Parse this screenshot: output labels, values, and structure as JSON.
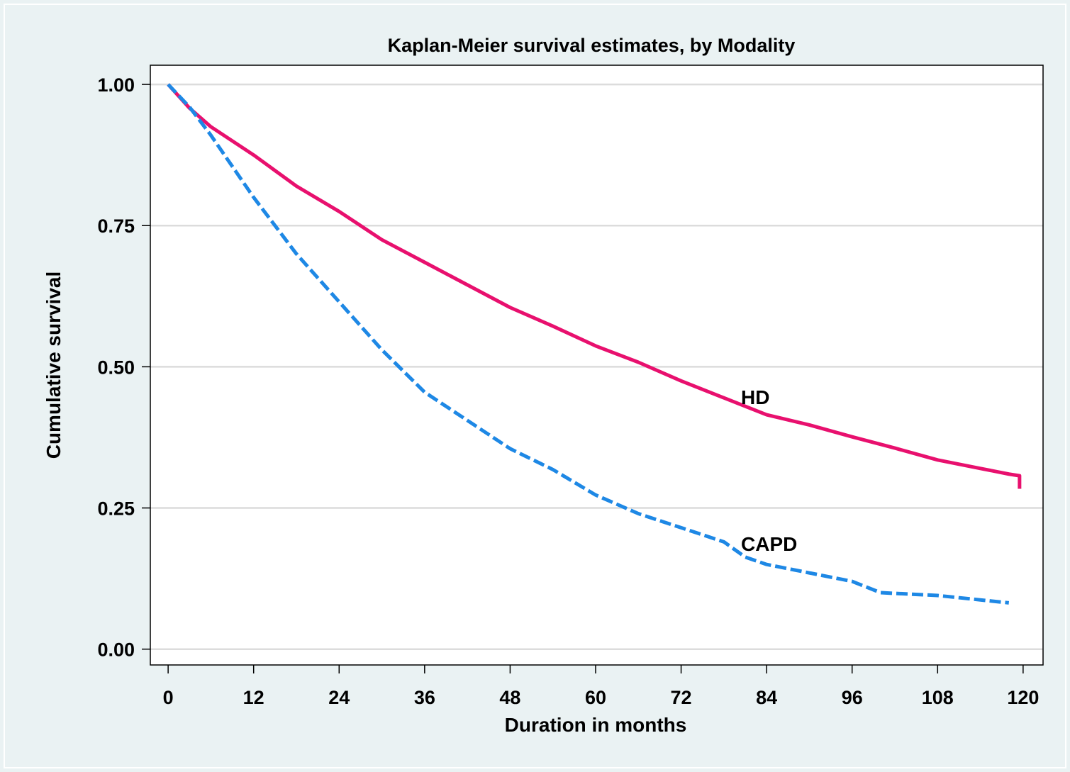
{
  "chart_data": {
    "type": "line",
    "title": "Kaplan-Meier survival estimates, by Modality",
    "x_label": "Duration in months",
    "y_label": "Cumulative survival",
    "xlim": [
      -2.5,
      122.8
    ],
    "ylim": [
      -0.028,
      1.034
    ],
    "xticks": [
      0,
      12,
      24,
      36,
      48,
      60,
      72,
      84,
      96,
      108,
      120
    ],
    "yticks": [
      {
        "value": 0,
        "label": "0.00"
      },
      {
        "value": 0.25,
        "label": "0.25"
      },
      {
        "value": 0.5,
        "label": "0.50"
      },
      {
        "value": 0.75,
        "label": "0.75"
      },
      {
        "value": 1,
        "label": "1.00"
      }
    ],
    "grid": true,
    "series": [
      {
        "name": "HD",
        "color": "#e8106e",
        "line_style": "solid",
        "x": [
          0,
          3,
          6,
          12,
          18,
          24,
          30,
          36,
          42,
          48,
          54,
          60,
          66,
          72,
          78,
          84,
          90,
          96,
          102,
          108,
          114,
          118,
          119.5,
          119.5
        ],
        "values": [
          1.0,
          0.958,
          0.925,
          0.875,
          0.82,
          0.775,
          0.725,
          0.685,
          0.645,
          0.605,
          0.572,
          0.537,
          0.508,
          0.475,
          0.445,
          0.415,
          0.397,
          0.376,
          0.356,
          0.335,
          0.32,
          0.31,
          0.307,
          0.284
        ]
      },
      {
        "name": "CAPD",
        "color": "#1e88e5",
        "line_style": "dashed",
        "x": [
          0,
          3,
          6,
          12,
          18,
          24,
          30,
          36,
          42,
          48,
          54,
          60,
          66,
          72,
          78,
          81,
          84,
          90,
          96,
          100,
          108,
          118
        ],
        "values": [
          1.0,
          0.96,
          0.91,
          0.8,
          0.7,
          0.615,
          0.53,
          0.455,
          0.405,
          0.355,
          0.318,
          0.273,
          0.24,
          0.215,
          0.19,
          0.163,
          0.15,
          0.135,
          0.12,
          0.1,
          0.095,
          0.082
        ]
      }
    ]
  }
}
